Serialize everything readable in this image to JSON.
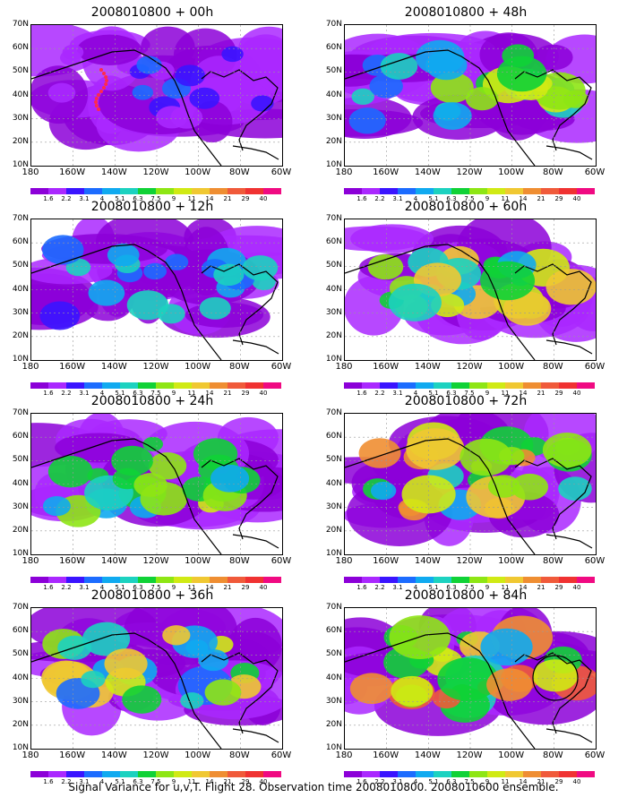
{
  "figure": {
    "caption": "Signal Variance for u,v,T. Flight 28. Observation time 2008010800. 2008010600 ensemble."
  },
  "axes": {
    "lat_labels": [
      "70N",
      "60N",
      "50N",
      "40N",
      "30N",
      "20N",
      "10N"
    ],
    "lon_labels": [
      "180",
      "160W",
      "140W",
      "120W",
      "100W",
      "80W",
      "60W"
    ]
  },
  "colorbar": {
    "levels": [
      "1.6",
      "2.2",
      "3.1",
      "4",
      "5.1",
      "6.3",
      "7.5",
      "9",
      "11",
      "14",
      "21",
      "29",
      "40"
    ],
    "colors": [
      "#8c00d8",
      "#aa28ff",
      "#3a14ff",
      "#1c6cff",
      "#10aaf0",
      "#1cd2c0",
      "#10d236",
      "#8ee614",
      "#d0ea14",
      "#f0c832",
      "#ef8e32",
      "#f05a3a",
      "#f03232",
      "#f00a82"
    ]
  },
  "panels": [
    {
      "title": "2008010800 + 00h",
      "intensity": 0.25,
      "marker": "dots"
    },
    {
      "title": "2008010800 + 12h",
      "intensity": 0.45
    },
    {
      "title": "2008010800 + 24h",
      "intensity": 0.6
    },
    {
      "title": "2008010800 + 36h",
      "intensity": 0.7
    },
    {
      "title": "2008010800 + 48h",
      "intensity": 0.65
    },
    {
      "title": "2008010800 + 60h",
      "intensity": 0.72
    },
    {
      "title": "2008010800 + 72h",
      "intensity": 0.78
    },
    {
      "title": "2008010800 + 84h",
      "intensity": 0.85,
      "marker": "circle"
    }
  ]
}
